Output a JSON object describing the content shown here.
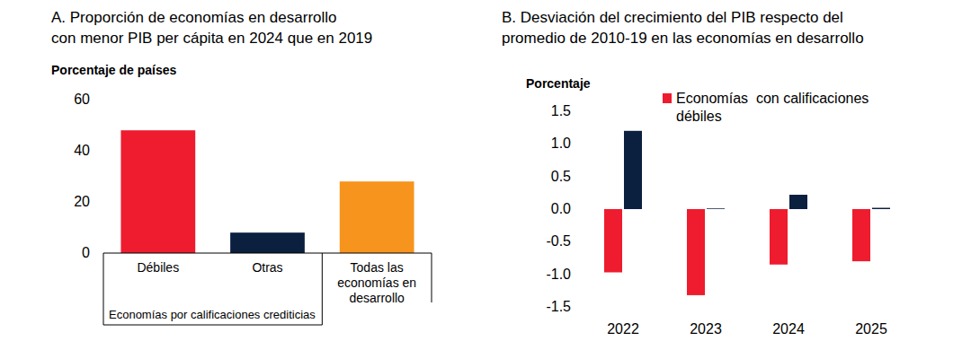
{
  "chart_data": [
    {
      "type": "bar",
      "title": "A. Proporción de economías en desarrollo\ncon menor PIB per cápita en 2024 que en 2019",
      "y_label": "Porcentaje de países",
      "x_label": "Economías por calificaciones crediticias",
      "categories": [
        "Débiles",
        "Otras",
        "Todas las economías en desarrollo"
      ],
      "values": [
        48,
        8,
        28
      ],
      "colors": [
        "#ee1c2e",
        "#0b1f3f",
        "#f7941d"
      ],
      "ylim": [
        0,
        60
      ],
      "yticks": [
        0,
        20,
        40,
        60
      ],
      "grid": false
    },
    {
      "type": "bar",
      "title": "B. Desviación del crecimiento del PIB respecto del\npromedio de 2010-19 en las economías en desarrollo",
      "y_label": "Porcentaje",
      "categories": [
        "2022",
        "2023",
        "2024",
        "2025"
      ],
      "series": [
        {
          "name": "Economías  con calificaciones débiles",
          "color": "#ee1c2e",
          "values": [
            -0.97,
            -1.32,
            -0.85,
            -0.8
          ]
        },
        {
          "color": "#0b1f3f",
          "values": [
            1.2,
            0.01,
            0.22,
            0.02
          ]
        }
      ],
      "ylim": [
        -1.5,
        1.5
      ],
      "yticks": [
        -1.5,
        {
          "value": -1,
          "label": "-1.0"
        },
        -0.5,
        {
          "value": 0,
          "label": "0.0"
        },
        0.5,
        {
          "value": 1,
          "label": "1.0"
        },
        1.5
      ],
      "legend": "top",
      "grid": false
    }
  ]
}
